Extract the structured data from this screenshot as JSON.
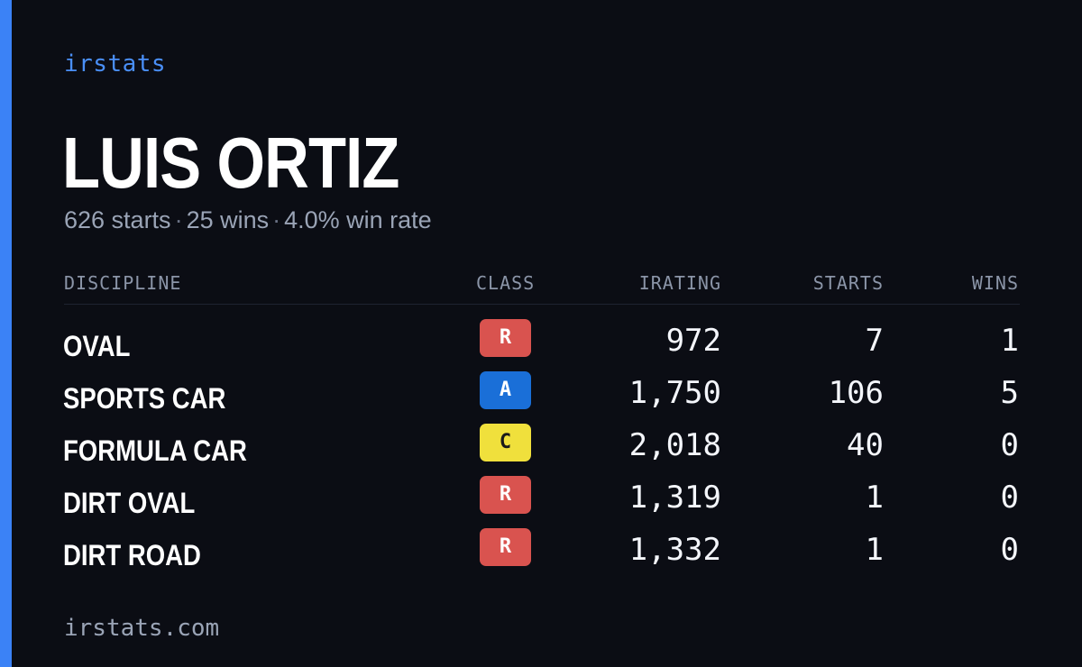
{
  "brand": "irstats",
  "player": {
    "name": "LUIS ORTIZ",
    "starts_text": "626 starts",
    "wins_text": "25 wins",
    "win_rate_text": "4.0% win rate",
    "separator": "·"
  },
  "table": {
    "headers": {
      "discipline": "DISCIPLINE",
      "class": "CLASS",
      "irating": "IRATING",
      "starts": "STARTS",
      "wins": "WINS"
    },
    "rows": [
      {
        "discipline": "OVAL",
        "class": "R",
        "irating": "972",
        "starts": "7",
        "wins": "1"
      },
      {
        "discipline": "SPORTS CAR",
        "class": "A",
        "irating": "1,750",
        "starts": "106",
        "wins": "5"
      },
      {
        "discipline": "FORMULA CAR",
        "class": "C",
        "irating": "2,018",
        "starts": "40",
        "wins": "0"
      },
      {
        "discipline": "DIRT OVAL",
        "class": "R",
        "irating": "1,319",
        "starts": "1",
        "wins": "0"
      },
      {
        "discipline": "DIRT ROAD",
        "class": "R",
        "irating": "1,332",
        "starts": "1",
        "wins": "0"
      }
    ]
  },
  "class_colors": {
    "R": {
      "bg": "#d9534f",
      "fg": "#ffffff"
    },
    "A": {
      "bg": "#1a6fd8",
      "fg": "#ffffff"
    },
    "C": {
      "bg": "#f0e03c",
      "fg": "#1a1a1a"
    }
  },
  "colors": {
    "background": "#0b0d14",
    "accent": "#3b82f6"
  },
  "footer": "irstats.com"
}
